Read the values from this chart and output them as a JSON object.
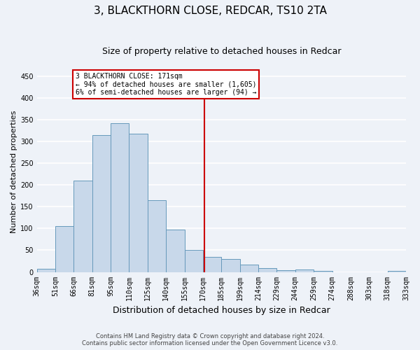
{
  "title": "3, BLACKTHORN CLOSE, REDCAR, TS10 2TA",
  "subtitle": "Size of property relative to detached houses in Redcar",
  "xlabel": "Distribution of detached houses by size in Redcar",
  "ylabel": "Number of detached properties",
  "footer_line1": "Contains HM Land Registry data © Crown copyright and database right 2024.",
  "footer_line2": "Contains public sector information licensed under the Open Government Licence v3.0.",
  "categories": [
    "36sqm",
    "51sqm",
    "66sqm",
    "81sqm",
    "95sqm",
    "110sqm",
    "125sqm",
    "140sqm",
    "155sqm",
    "170sqm",
    "185sqm",
    "199sqm",
    "214sqm",
    "229sqm",
    "244sqm",
    "259sqm",
    "274sqm",
    "288sqm",
    "303sqm",
    "318sqm",
    "333sqm"
  ],
  "values": [
    7,
    105,
    210,
    315,
    342,
    318,
    165,
    97,
    50,
    35,
    30,
    17,
    9,
    4,
    6,
    3,
    0,
    0,
    0,
    3
  ],
  "bar_color": "#c8d8ea",
  "bar_edge_color": "#6699bb",
  "vline_color": "#cc0000",
  "annotation_text_line1": "3 BLACKTHORN CLOSE: 171sqm",
  "annotation_text_line2": "← 94% of detached houses are smaller (1,605)",
  "annotation_text_line3": "6% of semi-detached houses are larger (94) →",
  "ylim": [
    0,
    460
  ],
  "yticks": [
    0,
    50,
    100,
    150,
    200,
    250,
    300,
    350,
    400,
    450
  ],
  "background_color": "#eef2f8",
  "grid_color": "#ffffff",
  "title_fontsize": 11,
  "subtitle_fontsize": 9,
  "ylabel_fontsize": 8,
  "xlabel_fontsize": 9,
  "tick_fontsize": 7
}
